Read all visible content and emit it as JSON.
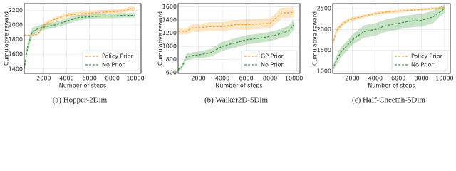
{
  "chart_data": [
    {
      "type": "line",
      "caption": "(a) Hopper-2Dim",
      "xlabel": "Number of steps",
      "ylabel": "Cumulative reward",
      "x": [
        300,
        600,
        1000,
        1500,
        2000,
        3000,
        4000,
        5000,
        6000,
        7000,
        8000,
        9000,
        9500,
        10000
      ],
      "xlim": [
        300,
        10500
      ],
      "xticks": [
        2000,
        4000,
        6000,
        8000,
        10000
      ],
      "ylim": [
        1340,
        2290
      ],
      "yticks": [
        1400,
        1600,
        1800,
        2000,
        2200
      ],
      "grid": true,
      "legend": "lower right",
      "series": [
        {
          "name": "Policy Prior",
          "color": "#f5a531",
          "values": [
            1860,
            1860,
            1860,
            1870,
            2000,
            2080,
            2130,
            2150,
            2160,
            2170,
            2180,
            2190,
            2220,
            2220
          ],
          "spread": [
            10,
            10,
            10,
            10,
            30,
            30,
            30,
            30,
            30,
            30,
            30,
            30,
            30,
            30
          ]
        },
        {
          "name": "No Prior",
          "color": "#3c9a3c",
          "values": [
            1400,
            1700,
            1900,
            1950,
            1970,
            2000,
            2050,
            2100,
            2110,
            2120,
            2120,
            2130,
            2130,
            2130
          ],
          "spread": [
            30,
            60,
            60,
            40,
            40,
            40,
            40,
            40,
            30,
            30,
            30,
            30,
            30,
            30
          ]
        }
      ]
    },
    {
      "type": "line",
      "caption": "(b) Walker2D-5Dim",
      "xlabel": "Number of steps",
      "ylabel": "Cumulative reward",
      "x": [
        300,
        600,
        1000,
        1500,
        2000,
        3000,
        4000,
        5000,
        6000,
        7000,
        8000,
        9000,
        9500,
        10000
      ],
      "xlim": [
        300,
        10500
      ],
      "xticks": [
        2000,
        4000,
        6000,
        8000,
        10000
      ],
      "ylim": [
        590,
        1650
      ],
      "yticks": [
        600,
        800,
        1000,
        1200,
        1400,
        1600
      ],
      "grid": true,
      "legend": "lower right",
      "series": [
        {
          "name": "GP Prior",
          "color": "#f5a531",
          "values": [
            1230,
            1230,
            1230,
            1280,
            1280,
            1300,
            1300,
            1330,
            1330,
            1340,
            1350,
            1510,
            1510,
            1520
          ],
          "spread": [
            50,
            50,
            50,
            60,
            60,
            70,
            70,
            70,
            80,
            80,
            80,
            80,
            80,
            80
          ]
        },
        {
          "name": "No Prior",
          "color": "#3c9a3c",
          "values": [
            650,
            680,
            840,
            860,
            870,
            900,
            1000,
            1050,
            1100,
            1120,
            1150,
            1200,
            1230,
            1330
          ],
          "spread": [
            20,
            30,
            50,
            50,
            50,
            60,
            70,
            70,
            70,
            70,
            70,
            70,
            80,
            80
          ]
        }
      ]
    },
    {
      "type": "line",
      "caption": "(c) Half-Cheetah-5Dim",
      "xlabel": "Number of steps",
      "ylabel": "Cumulative reward",
      "x": [
        300,
        600,
        1000,
        1500,
        2000,
        3000,
        4000,
        5000,
        6000,
        7000,
        8000,
        9000,
        9500,
        10000
      ],
      "xlim": [
        300,
        10500
      ],
      "xticks": [
        2000,
        4000,
        6000,
        8000,
        10000
      ],
      "ylim": [
        950,
        2620
      ],
      "yticks": [
        1000,
        1500,
        2000,
        2500
      ],
      "grid": true,
      "legend": "lower right",
      "series": [
        {
          "name": "Policy Prior",
          "color": "#f5a531",
          "values": [
            1650,
            1950,
            2100,
            2200,
            2250,
            2320,
            2380,
            2420,
            2440,
            2460,
            2480,
            2500,
            2510,
            2520
          ],
          "spread": [
            80,
            80,
            60,
            50,
            50,
            40,
            40,
            40,
            40,
            30,
            30,
            30,
            30,
            30
          ]
        },
        {
          "name": "No Prior",
          "color": "#3c9a3c",
          "values": [
            1050,
            1250,
            1450,
            1600,
            1750,
            1950,
            2000,
            2100,
            2150,
            2200,
            2220,
            2300,
            2400,
            2500
          ],
          "spread": [
            60,
            100,
            120,
            120,
            120,
            150,
            150,
            150,
            150,
            150,
            150,
            150,
            120,
            100
          ]
        }
      ]
    }
  ]
}
